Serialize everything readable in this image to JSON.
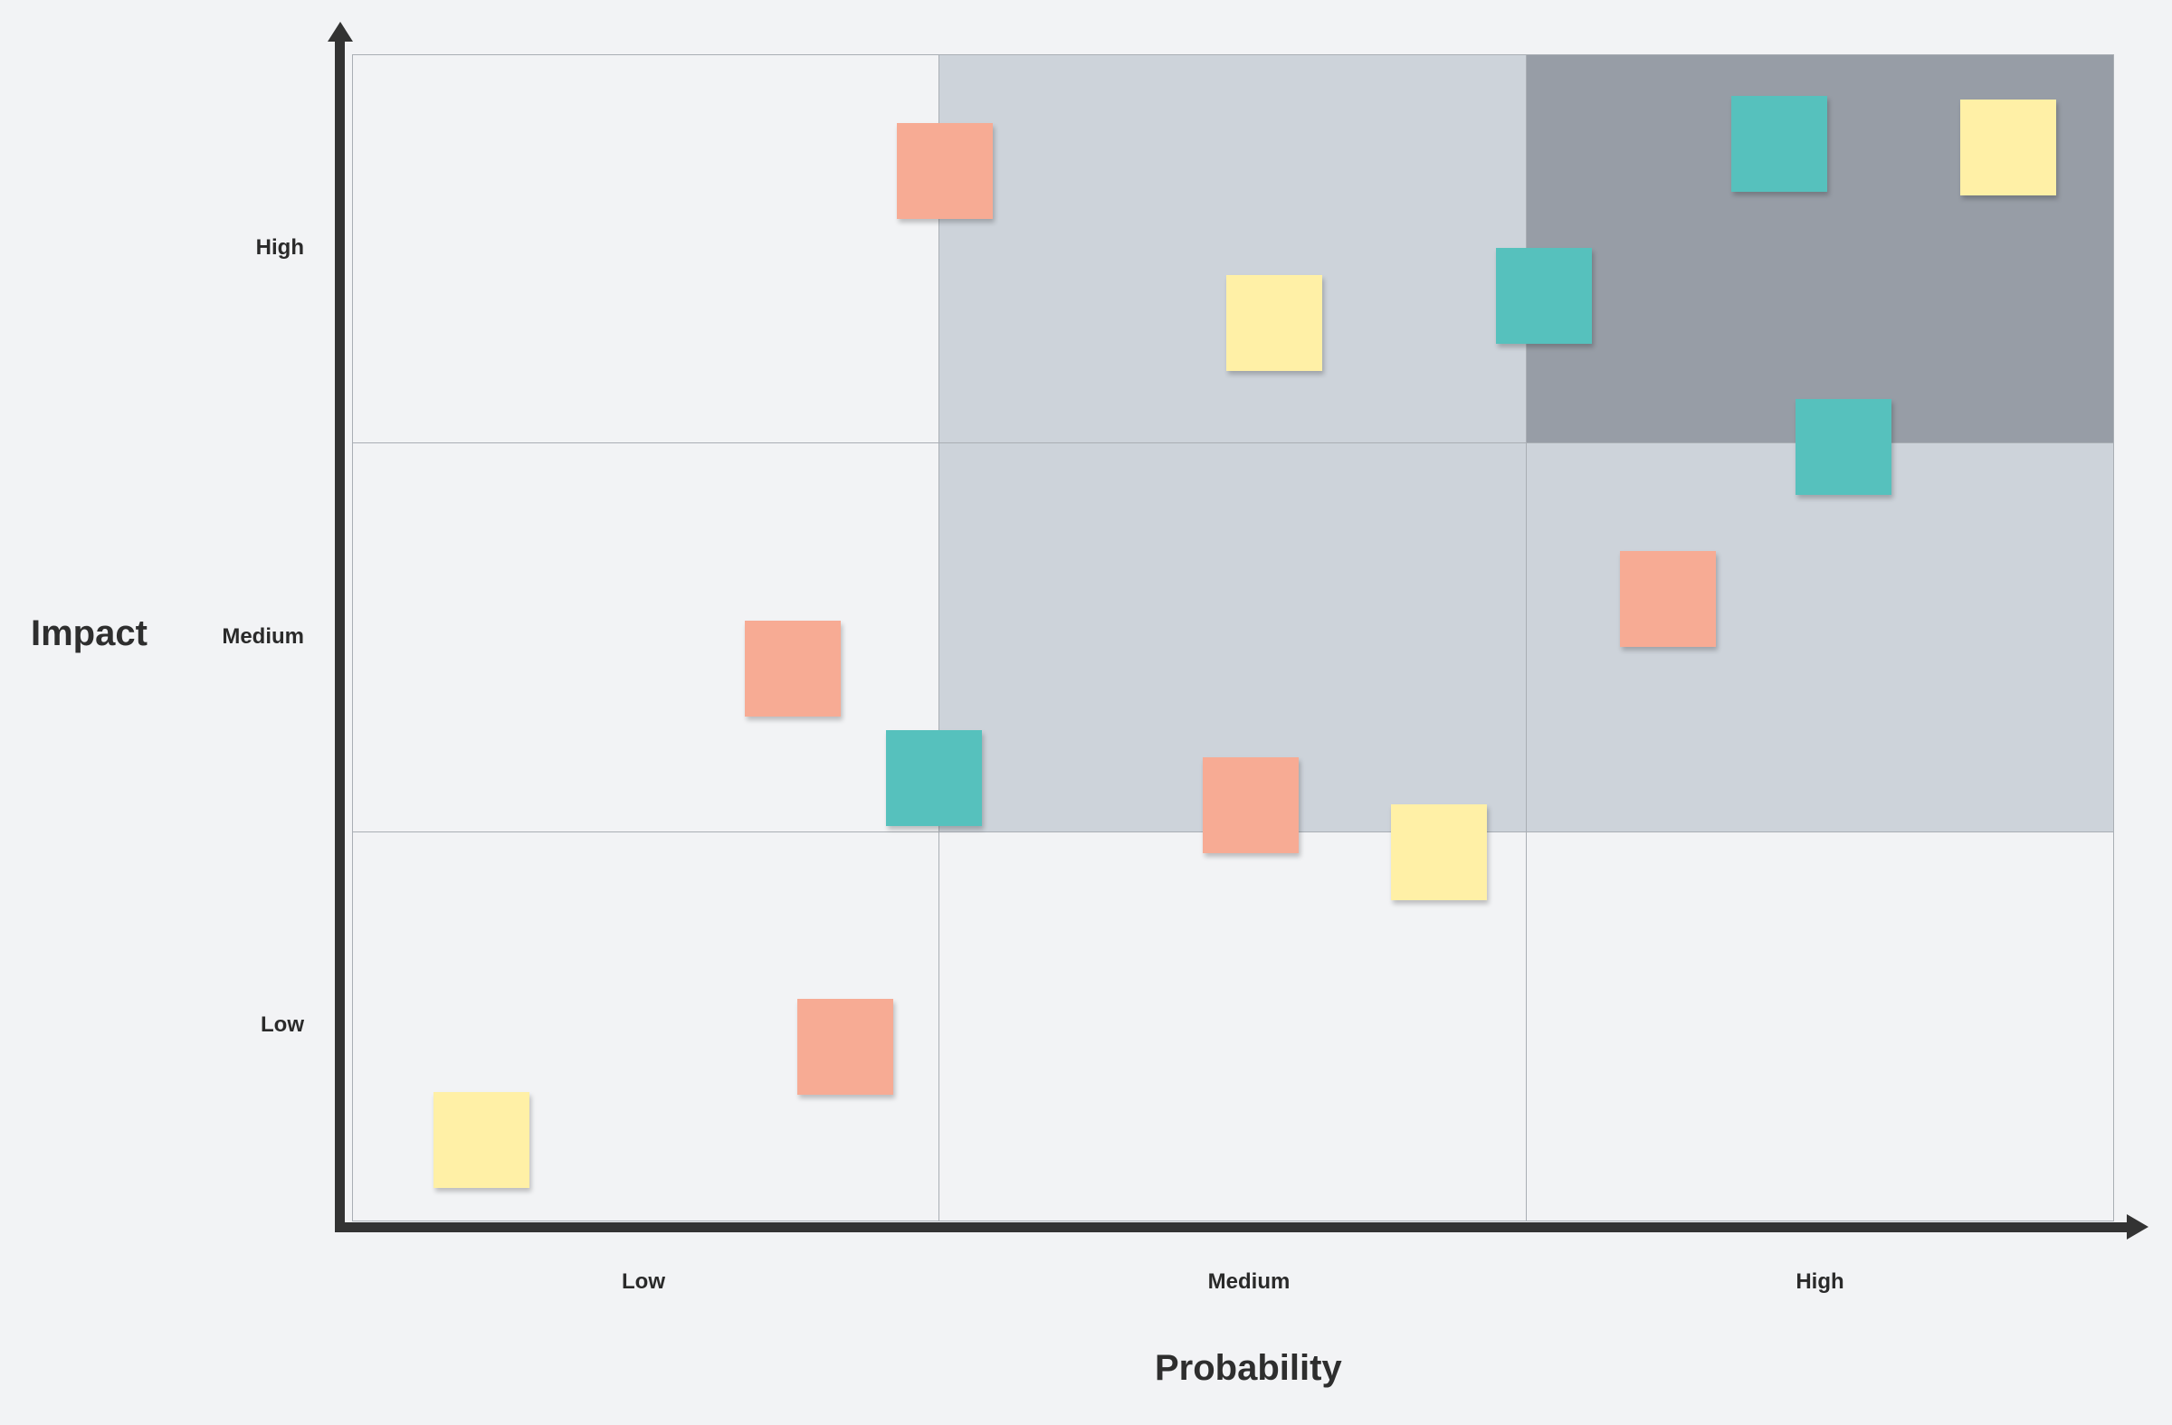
{
  "chart_data": {
    "type": "scatter",
    "title": "",
    "xlabel": "Probability",
    "ylabel": "Impact",
    "x_categories": [
      "Low",
      "Medium",
      "High"
    ],
    "y_categories": [
      "Low",
      "Medium",
      "High"
    ],
    "xlim": [
      0,
      3
    ],
    "ylim": [
      0,
      3
    ],
    "grid": true,
    "cell_shading": [
      [
        "#f2f3f5",
        "#cdd3da",
        "#979da6"
      ],
      [
        "#f2f3f5",
        "#cdd3da",
        "#cdd3da"
      ],
      [
        "#f2f3f5",
        "#f2f3f5",
        "#f2f3f5"
      ]
    ],
    "note_colors": {
      "salmon": "#f7ab94",
      "teal": "#56c1bd",
      "yellow": "#fff0a6"
    },
    "points": [
      {
        "x": 1.01,
        "y": 2.7,
        "color": "salmon"
      },
      {
        "x": 1.57,
        "y": 2.31,
        "color": "yellow"
      },
      {
        "x": 2.03,
        "y": 2.38,
        "color": "teal"
      },
      {
        "x": 2.43,
        "y": 2.77,
        "color": "teal"
      },
      {
        "x": 2.82,
        "y": 2.76,
        "color": "yellow"
      },
      {
        "x": 2.54,
        "y": 1.99,
        "color": "teal"
      },
      {
        "x": 2.24,
        "y": 1.6,
        "color": "salmon"
      },
      {
        "x": 0.75,
        "y": 1.42,
        "color": "salmon"
      },
      {
        "x": 0.99,
        "y": 1.14,
        "color": "teal"
      },
      {
        "x": 1.53,
        "y": 1.07,
        "color": "salmon"
      },
      {
        "x": 1.85,
        "y": 0.95,
        "color": "yellow"
      },
      {
        "x": 0.84,
        "y": 0.45,
        "color": "salmon"
      },
      {
        "x": 0.22,
        "y": 0.21,
        "color": "yellow"
      }
    ]
  }
}
